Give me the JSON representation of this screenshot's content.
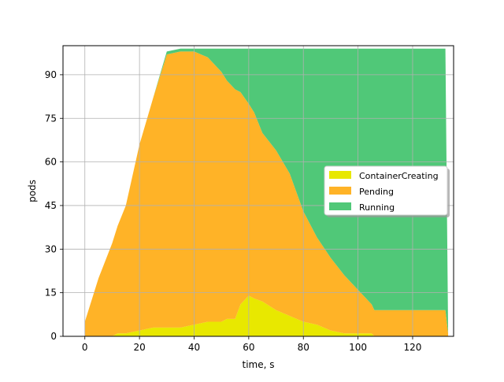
{
  "chart_data": {
    "type": "area",
    "stacked": true,
    "title": "",
    "xlabel": "time, s",
    "ylabel": "pods",
    "xlim": [
      -8,
      135
    ],
    "ylim": [
      0,
      100
    ],
    "xticks": [
      0,
      20,
      40,
      60,
      80,
      100,
      120
    ],
    "yticks": [
      0,
      15,
      30,
      45,
      60,
      75,
      90
    ],
    "grid": true,
    "legend": {
      "placement": "right",
      "shadow": true
    },
    "x": [
      0,
      5,
      10,
      12,
      15,
      20,
      25,
      30,
      35,
      40,
      45,
      50,
      52,
      55,
      57,
      60,
      62,
      65,
      70,
      75,
      80,
      85,
      90,
      95,
      100,
      103,
      105,
      106,
      110,
      120,
      130,
      132,
      133
    ],
    "series": [
      {
        "name": "ContainerCreating",
        "color": "#e8e800",
        "values": [
          0,
          0,
          0,
          1,
          1,
          2,
          3,
          3,
          3,
          4,
          5,
          5,
          6,
          6,
          11,
          14,
          13,
          12,
          9,
          7,
          5,
          4,
          2,
          1,
          1,
          1,
          1,
          0,
          0,
          0,
          0,
          0,
          0
        ]
      },
      {
        "name": "Pending",
        "color": "#ffb327",
        "values": [
          5,
          20,
          32,
          37,
          44,
          64,
          79,
          94,
          95,
          94,
          91,
          86,
          82,
          79,
          73,
          66,
          64,
          58,
          55,
          49,
          38,
          30,
          25,
          20,
          15,
          12,
          10,
          9,
          9,
          9,
          9,
          9,
          1
        ]
      },
      {
        "name": "Running",
        "color": "#50c878",
        "values": [
          0,
          0,
          0,
          0,
          0,
          0,
          0,
          1,
          1,
          1,
          3,
          8,
          11,
          14,
          15,
          19,
          22,
          29,
          35,
          43,
          56,
          65,
          72,
          78,
          83,
          86,
          88,
          90,
          90,
          90,
          90,
          90,
          0
        ]
      }
    ]
  }
}
